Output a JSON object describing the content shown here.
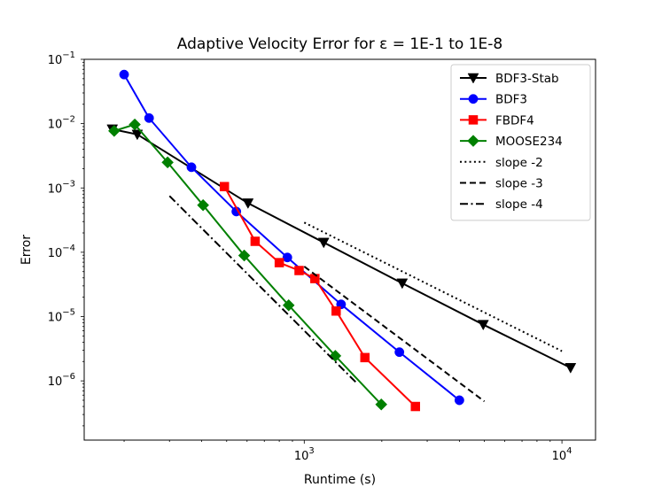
{
  "chart_data": {
    "type": "line",
    "title": "Adaptive Velocity Error for ε = 1E-1 to 1E-8",
    "xlabel": "Runtime (s)",
    "ylabel": "Error",
    "xscale": "log",
    "yscale": "log",
    "xlim": [
      140,
      13500
    ],
    "ylim": [
      1.2e-07,
      0.1
    ],
    "x_ticks": [
      {
        "value": 1000,
        "base": "10",
        "exp": "3"
      },
      {
        "value": 10000,
        "base": "10",
        "exp": "4"
      }
    ],
    "y_ticks": [
      {
        "value": 1e-06,
        "base": "10",
        "exp": "−6"
      },
      {
        "value": 1e-05,
        "base": "10",
        "exp": "−5"
      },
      {
        "value": 0.0001,
        "base": "10",
        "exp": "−4"
      },
      {
        "value": 0.001,
        "base": "10",
        "exp": "−3"
      },
      {
        "value": 0.01,
        "base": "10",
        "exp": "−2"
      },
      {
        "value": 0.1,
        "base": "10",
        "exp": "−1"
      }
    ],
    "legend_position": "top-right",
    "series": [
      {
        "name": "BDF3-Stab",
        "color": "#000000",
        "marker": "triangle-down",
        "dash": "solid",
        "x": [
          180,
          225,
          605,
          1190,
          2400,
          4950,
          10800
        ],
        "y": [
          0.0082,
          0.0068,
          0.00058,
          0.000142,
          3.3e-05,
          7.5e-06,
          1.6e-06
        ]
      },
      {
        "name": "BDF3",
        "color": "#0000ff",
        "marker": "circle",
        "dash": "solid",
        "x": [
          200,
          250,
          365,
          545,
          860,
          1390,
          2340,
          4000
        ],
        "y": [
          0.058,
          0.0122,
          0.0021,
          0.00043,
          8.3e-05,
          1.55e-05,
          2.8e-06,
          5e-07
        ]
      },
      {
        "name": "FBDF4",
        "color": "#ff0000",
        "marker": "square",
        "dash": "solid",
        "x": [
          490,
          645,
          800,
          955,
          1100,
          1330,
          1720,
          2700
        ],
        "y": [
          0.00105,
          0.000148,
          6.9e-05,
          5.2e-05,
          3.9e-05,
          1.22e-05,
          2.3e-06,
          4e-07
        ]
      },
      {
        "name": "MOOSE234",
        "color": "#008000",
        "marker": "diamond",
        "dash": "solid",
        "x": [
          183,
          220,
          295,
          405,
          585,
          870,
          1320,
          1990
        ],
        "y": [
          0.0077,
          0.0097,
          0.0025,
          0.00054,
          8.9e-05,
          1.5e-05,
          2.45e-06,
          4.3e-07
        ]
      },
      {
        "name": "slope -2",
        "color": "#000000",
        "marker": "none",
        "dash": "dotted",
        "x": [
          1000,
          10000
        ],
        "y": [
          0.00029,
          2.9e-06
        ]
      },
      {
        "name": "slope -3",
        "color": "#000000",
        "marker": "none",
        "dash": "dashed",
        "x": [
          1000,
          5000
        ],
        "y": [
          6e-05,
          4.8e-07
        ]
      },
      {
        "name": "slope -4",
        "color": "#000000",
        "marker": "none",
        "dash": "dashdot",
        "x": [
          300,
          1600
        ],
        "y": [
          0.00075,
          9.2e-07
        ]
      }
    ]
  }
}
